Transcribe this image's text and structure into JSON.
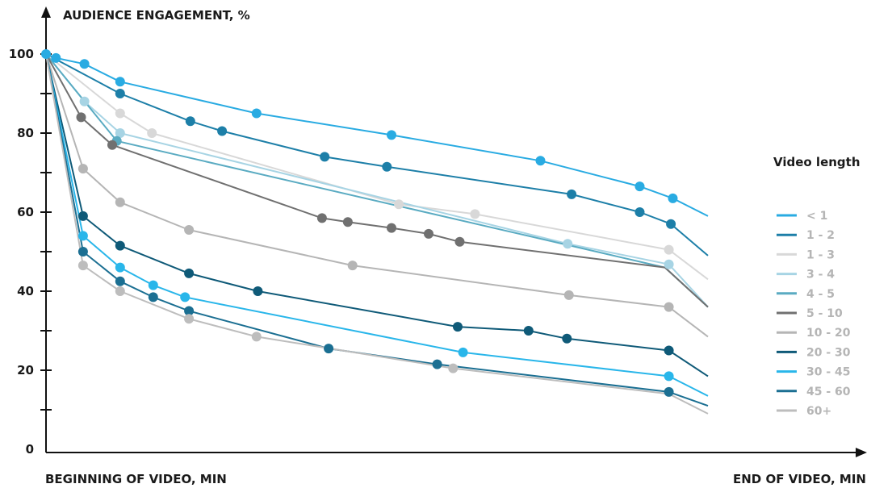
{
  "chart_data": {
    "type": "line",
    "title": "",
    "ylabel": "AUDIENCE ENGAGEMENT, %",
    "xlabel_start": "BEGINNING OF VIDEO, MIN",
    "xlabel_end": "END OF VIDEO, MIN",
    "ylim": [
      0,
      100
    ],
    "xlim": [
      0,
      100
    ],
    "y_ticks": [
      0,
      20,
      40,
      60,
      80,
      100
    ],
    "y_tick_labels": [
      "0",
      "20",
      "40",
      "60",
      "80",
      "100"
    ],
    "y_minor_ticks": [
      10,
      30,
      50,
      70,
      90
    ],
    "x_tick_labels_shown": false,
    "grid": false,
    "legend_title": "Video length",
    "legend_position": "right",
    "series": [
      {
        "name": "< 1",
        "color": "#29abe2",
        "x": [
          0,
          1.5,
          5.8,
          11.2,
          31.8,
          52.2,
          74.7,
          89.7,
          94.7,
          100
        ],
        "y": [
          100,
          99,
          97.5,
          93,
          85,
          79.5,
          73,
          66.5,
          63.5,
          59
        ],
        "markers": [
          true,
          true,
          true,
          true,
          true,
          true,
          true,
          true,
          true,
          false
        ]
      },
      {
        "name": "1 - 2",
        "color": "#1d7fa8",
        "x": [
          0,
          11.2,
          21.8,
          26.6,
          42.1,
          51.5,
          79.4,
          89.7,
          94.4,
          100
        ],
        "y": [
          100,
          90,
          83,
          80.5,
          74,
          71.5,
          64.5,
          60,
          57,
          49
        ],
        "markers": [
          false,
          true,
          true,
          true,
          true,
          true,
          true,
          true,
          true,
          false
        ]
      },
      {
        "name": "1 - 3",
        "color": "#d8d8d8",
        "x": [
          0,
          11.2,
          16.0,
          53.3,
          64.8,
          94.1,
          100
        ],
        "y": [
          100,
          85,
          80,
          62,
          59.5,
          50.5,
          43
        ],
        "markers": [
          false,
          true,
          true,
          true,
          true,
          true,
          false
        ]
      },
      {
        "name": "3 - 4",
        "color": "#a7d4e4",
        "x": [
          0,
          5.8,
          11.2,
          78.8,
          94.1,
          100
        ],
        "y": [
          100,
          88,
          80,
          52,
          46.8,
          36
        ],
        "markers": [
          false,
          true,
          true,
          true,
          true,
          false
        ]
      },
      {
        "name": "4 - 5",
        "color": "#5aabc2",
        "x": [
          0,
          10.7,
          93.5,
          100
        ],
        "y": [
          100,
          78,
          46,
          36
        ],
        "markers": [
          false,
          true,
          false,
          false
        ]
      },
      {
        "name": "5 - 10",
        "color": "#707070",
        "x": [
          0,
          5.3,
          10.0,
          41.7,
          45.6,
          52.2,
          57.8,
          62.5,
          93.5,
          100
        ],
        "y": [
          100,
          84,
          77,
          58.5,
          57.5,
          56,
          54.5,
          52.5,
          46,
          36
        ],
        "markers": [
          false,
          true,
          true,
          true,
          true,
          true,
          true,
          true,
          false,
          false
        ]
      },
      {
        "name": "10 - 20",
        "color": "#b5b5b5",
        "x": [
          0,
          5.6,
          11.2,
          21.6,
          46.3,
          79.0,
          94.1,
          100
        ],
        "y": [
          100,
          71,
          62.5,
          55.5,
          46.5,
          39,
          36,
          28.5
        ],
        "markers": [
          false,
          true,
          true,
          true,
          true,
          true,
          true,
          false
        ]
      },
      {
        "name": "20 - 30",
        "color": "#0f5a78",
        "x": [
          0,
          5.6,
          11.2,
          21.6,
          32.0,
          62.2,
          72.9,
          78.7,
          94.1,
          100
        ],
        "y": [
          100,
          59,
          51.5,
          44.5,
          40,
          31,
          30,
          28,
          25,
          18.5
        ],
        "markers": [
          false,
          true,
          true,
          true,
          true,
          true,
          true,
          true,
          true,
          false
        ]
      },
      {
        "name": "30 - 45",
        "color": "#29b6ea",
        "x": [
          0,
          5.6,
          11.2,
          16.2,
          21.0,
          63.0,
          94.1,
          100
        ],
        "y": [
          100,
          54,
          46,
          41.5,
          38.5,
          24.5,
          18.5,
          13.5
        ],
        "markers": [
          false,
          true,
          true,
          true,
          true,
          true,
          true,
          false
        ]
      },
      {
        "name": "45 - 60",
        "color": "#1b6f92",
        "x": [
          0,
          5.6,
          11.2,
          16.2,
          21.6,
          42.7,
          59.1,
          94.1,
          100
        ],
        "y": [
          100,
          50,
          42.5,
          38.5,
          35,
          25.5,
          21.5,
          14.5,
          11
        ],
        "markers": [
          false,
          true,
          true,
          true,
          true,
          true,
          true,
          true,
          false
        ]
      },
      {
        "name": "60+",
        "color": "#bdbdbd",
        "x": [
          0,
          5.6,
          11.2,
          21.6,
          31.8,
          61.5,
          94.1,
          100
        ],
        "y": [
          100,
          46.5,
          40,
          33,
          28.5,
          20.5,
          14,
          9
        ],
        "markers": [
          false,
          true,
          true,
          true,
          true,
          true,
          false,
          false
        ]
      }
    ]
  }
}
